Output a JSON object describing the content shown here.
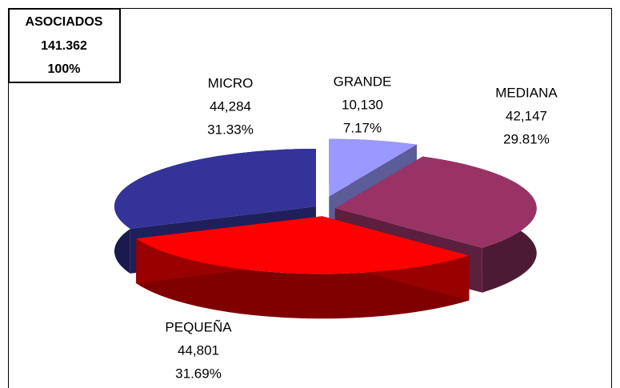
{
  "chart_data": {
    "type": "pie",
    "annotations": [
      "ASOCIADOS",
      "141.362",
      "100%"
    ],
    "categories": [
      "GRANDE",
      "MEDIANA",
      "PEQUEÑA",
      "MICRO"
    ],
    "values": [
      10130,
      42147,
      44801,
      44284
    ],
    "value_labels": [
      "10,130",
      "42,147",
      "44,801",
      "44,284"
    ],
    "percents": [
      7.17,
      29.81,
      31.69,
      31.33
    ],
    "percent_labels": [
      "7.17%",
      "29.81%",
      "31.69%",
      "31.33%"
    ],
    "colors": [
      "#9999ff",
      "#993366",
      "#ff0000",
      "#333399"
    ],
    "three_d": true
  }
}
